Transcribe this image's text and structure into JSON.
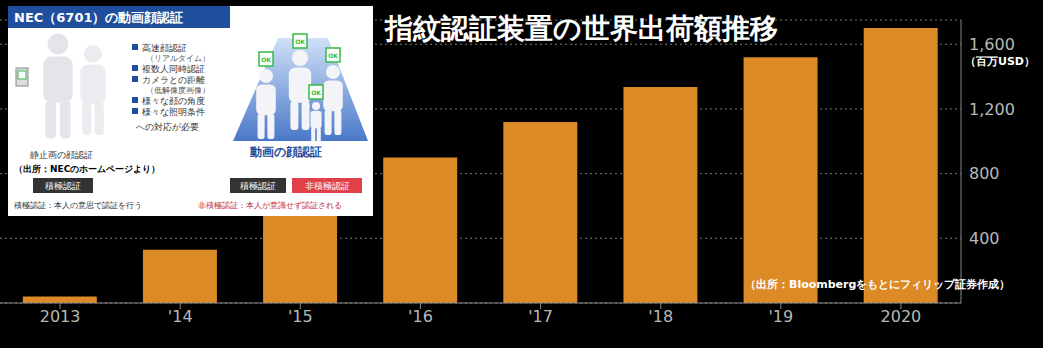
{
  "chart_data": {
    "type": "bar",
    "title": "指紋認証装置の世界出荷額推移",
    "ylabel": "（百万USD）",
    "source": "（出所：Bloombergをもとにフィリップ証券作成）",
    "categories": [
      "2013",
      "'14",
      "'15",
      "'16",
      "'17",
      "'18",
      "'19",
      "2020"
    ],
    "values": [
      40,
      330,
      550,
      900,
      1120,
      1335,
      1520,
      1700
    ],
    "color": "#dc8a26",
    "ylim": [
      0,
      1750
    ],
    "yticks": [
      400,
      800,
      {
        "value": 1200,
        "label": "1,200"
      },
      {
        "value": 1600,
        "label": "1,600"
      }
    ],
    "grid": true
  },
  "inset": {
    "title": "NEC（6701）の動画顔認証",
    "requirements": [
      {
        "text": "高速顔認証",
        "note": "（リアルタイム）"
      },
      {
        "text": "複数人同時認証"
      },
      {
        "text": "カメラとの距離",
        "note": "（低解像度画像）"
      },
      {
        "text": "様々な顔の角度"
      },
      {
        "text": "様々な照明条件"
      }
    ],
    "requirements_footer": "への対応が必要",
    "still_label": "静止画の顔認証",
    "still_modes": [
      "積極認証"
    ],
    "video_label": "動画の顔認証",
    "video_modes": [
      "積極認証",
      "非積極認証"
    ],
    "ok_label": "OK",
    "source": "（出所：NECのホームページより）",
    "definitions": [
      "積極認証：本人の意思で認証を行う",
      "非積極認証：本人が意識せず認証される"
    ]
  }
}
